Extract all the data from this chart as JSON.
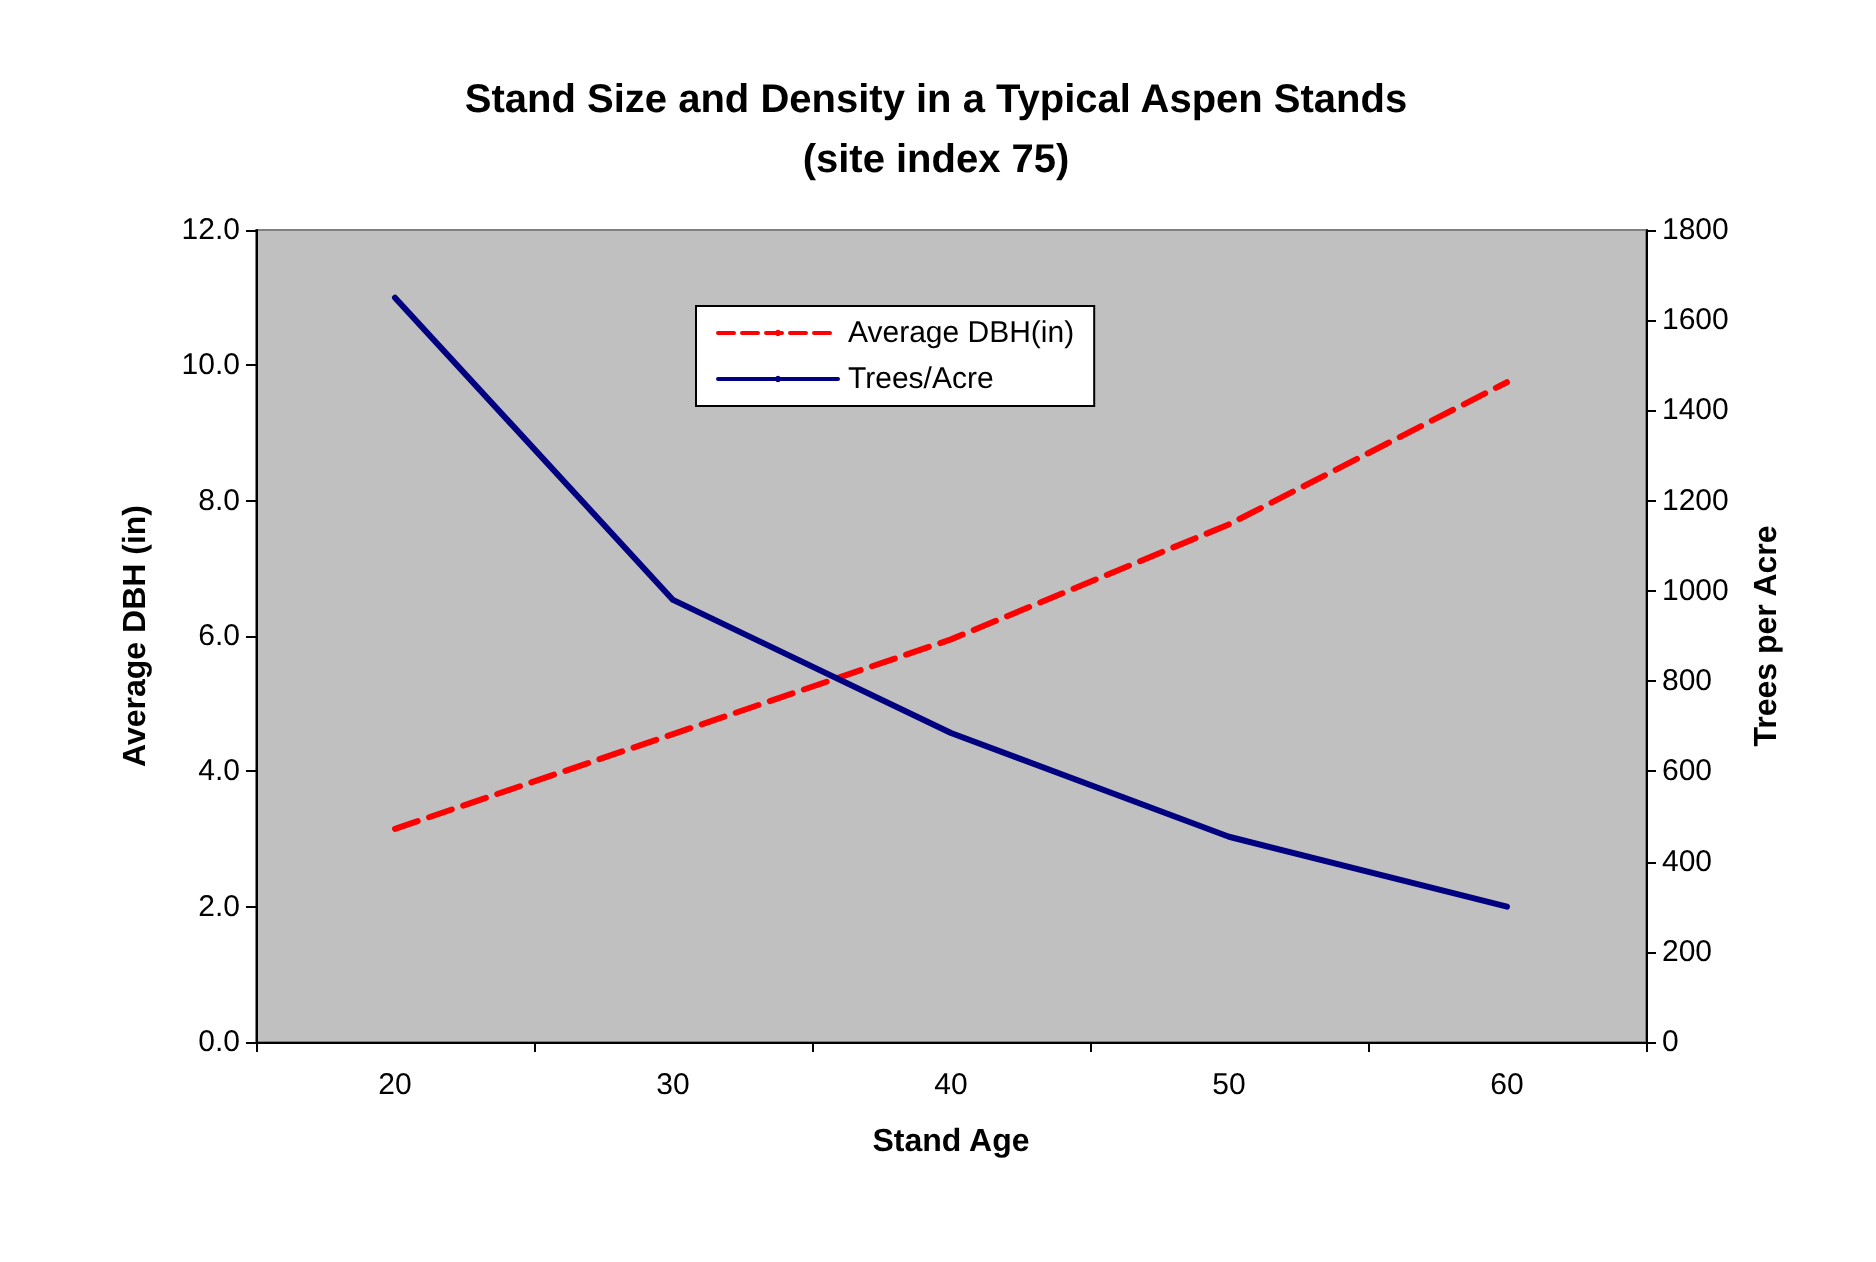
{
  "chart_data": {
    "type": "line",
    "title": "Stand Size and Density in a Typical Aspen Stands\n(site index 75)",
    "xlabel": "Stand Age",
    "ylabel": "Average DBH (in)",
    "y2label": "Trees per Acre",
    "categories": [
      "20",
      "30",
      "40",
      "50",
      "60"
    ],
    "series": [
      {
        "name": "Average DBH(in)",
        "color": "#ff0000",
        "line_style": "dashed",
        "values": [
          3.15,
          4.55,
          5.95,
          7.65,
          9.75
        ]
      },
      {
        "name": "Trees/Acre",
        "color": "#000080",
        "line_style": "solid",
        "axis": "y2",
        "values": [
          1650,
          980,
          685,
          455,
          300
        ]
      }
    ],
    "ylim": [
      0,
      12
    ],
    "yticks": [
      {
        "value": 0,
        "label": "0.0"
      },
      {
        "value": 2,
        "label": "2.0"
      },
      {
        "value": 4,
        "label": "4.0"
      },
      {
        "value": 6,
        "label": "6.0"
      },
      {
        "value": 8,
        "label": "8.0"
      },
      {
        "value": 10,
        "label": "10.0"
      },
      {
        "value": 12,
        "label": "12.0"
      }
    ],
    "y2lim": [
      0,
      1800
    ],
    "y2ticks": [
      0,
      200,
      400,
      600,
      800,
      1000,
      1200,
      1400,
      1600,
      1800
    ],
    "grid": false,
    "legend": "top",
    "marker": "none"
  }
}
